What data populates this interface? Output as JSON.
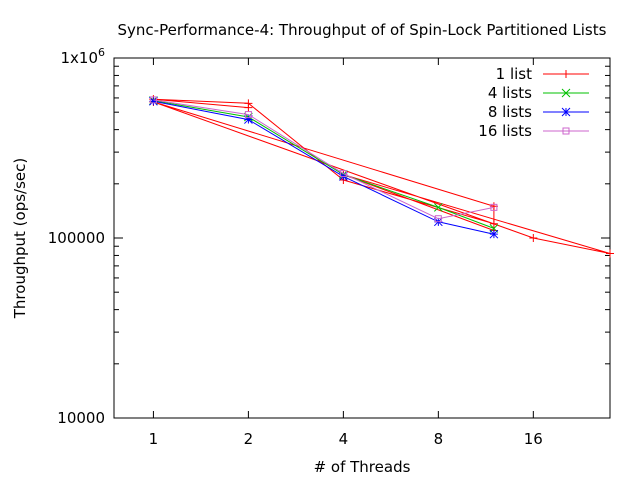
{
  "chart_data": {
    "type": "line",
    "title": "Sync-Performance-4: Throughput of of Spin-Lock Partitioned Lists",
    "xlabel": "# of Threads",
    "ylabel": "Throughput (ops/sec)",
    "x_scale": "log2",
    "y_scale": "log10",
    "xlim": [
      0.75,
      28
    ],
    "ylim": [
      10000,
      1000000
    ],
    "x_ticks": [
      {
        "value": 1,
        "label": "1"
      },
      {
        "value": 2,
        "label": "2"
      },
      {
        "value": 4,
        "label": "4"
      },
      {
        "value": 8,
        "label": "8"
      },
      {
        "value": 16,
        "label": "16"
      }
    ],
    "y_ticks": [
      {
        "value": 10000,
        "label": "10000"
      },
      {
        "value": 100000,
        "label": "100000"
      },
      {
        "value": 1000000,
        "label": "1x10",
        "sup": "6"
      }
    ],
    "legend_position": "top-right",
    "grid": false,
    "series": [
      {
        "name": "1 list",
        "color": "#ff0000",
        "marker": "plus",
        "points": [
          {
            "x": 1,
            "y": 590000
          },
          {
            "x": 2,
            "y": 530000
          },
          {
            "x": 1,
            "y": 590000
          },
          {
            "x": 2,
            "y": 560000
          },
          {
            "x": 4,
            "y": 210000
          },
          {
            "x": 12,
            "y": 120000
          },
          {
            "x": 12,
            "y": 150000
          },
          {
            "x": 1,
            "y": 570000
          },
          {
            "x": 16,
            "y": 100000
          },
          {
            "x": 28,
            "y": 82000
          },
          {
            "x": 4,
            "y": 225000
          },
          {
            "x": 12,
            "y": 110000
          }
        ]
      },
      {
        "name": "4 lists",
        "color": "#00c000",
        "marker": "cross",
        "points": [
          {
            "x": 1,
            "y": 580000
          },
          {
            "x": 2,
            "y": 470000
          },
          {
            "x": 4,
            "y": 225000
          },
          {
            "x": 8,
            "y": 148000
          },
          {
            "x": 12,
            "y": 113000
          }
        ]
      },
      {
        "name": "8 lists",
        "color": "#0000ff",
        "marker": "star",
        "points": [
          {
            "x": 1,
            "y": 575000
          },
          {
            "x": 2,
            "y": 455000
          },
          {
            "x": 4,
            "y": 220000
          },
          {
            "x": 8,
            "y": 123000
          },
          {
            "x": 12,
            "y": 105000
          }
        ]
      },
      {
        "name": "16 lists",
        "color": "#cc66cc",
        "marker": "square",
        "points": [
          {
            "x": 1,
            "y": 585000
          },
          {
            "x": 2,
            "y": 485000
          },
          {
            "x": 4,
            "y": 228000
          },
          {
            "x": 8,
            "y": 128000
          },
          {
            "x": 12,
            "y": 148000
          }
        ]
      }
    ]
  }
}
